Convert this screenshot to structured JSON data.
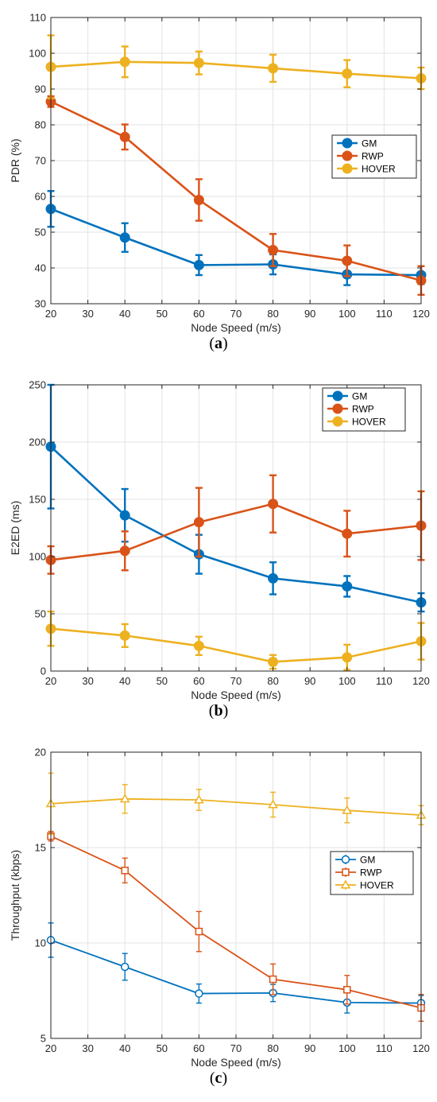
{
  "chart_data": [
    {
      "type": "line",
      "caption_open": "(",
      "caption_letter": "a",
      "caption_close": ")",
      "xlabel": "Node Speed (m/s)",
      "ylabel": "PDR (%)",
      "xlim": [
        20,
        120
      ],
      "ylim": [
        30,
        110
      ],
      "xticks": [
        20,
        30,
        40,
        50,
        60,
        70,
        80,
        90,
        100,
        110,
        120
      ],
      "yticks": [
        30,
        40,
        50,
        60,
        70,
        80,
        90,
        100,
        110
      ],
      "grid": true,
      "legend": "center-right",
      "marker": "filled",
      "x": [
        20,
        40,
        60,
        80,
        100,
        120
      ],
      "series": [
        {
          "name": "GM",
          "color": "#0072BD",
          "values": [
            56.5,
            48.5,
            40.8,
            41,
            38.2,
            38
          ],
          "err": [
            5,
            4,
            2.8,
            2.8,
            3,
            2.5
          ]
        },
        {
          "name": "RWP",
          "color": "#D95319",
          "values": [
            86.5,
            76.6,
            59,
            45,
            42,
            36.5
          ],
          "err": [
            1.5,
            3.5,
            5.8,
            4.5,
            4.3,
            4
          ]
        },
        {
          "name": "HOVER",
          "color": "#EDB120",
          "values": [
            96.2,
            97.6,
            97.3,
            95.8,
            94.3,
            93
          ],
          "err": [
            8.8,
            4.3,
            3.2,
            3.8,
            3.8,
            3
          ]
        }
      ]
    },
    {
      "type": "line",
      "caption_open": "(",
      "caption_letter": "b",
      "caption_close": ")",
      "xlabel": "Node Speed (m/s)",
      "ylabel": "E2ED (ms)",
      "xlim": [
        20,
        120
      ],
      "ylim": [
        0,
        250
      ],
      "xticks": [
        20,
        30,
        40,
        50,
        60,
        70,
        80,
        90,
        100,
        110,
        120
      ],
      "yticks": [
        0,
        50,
        100,
        150,
        200,
        250
      ],
      "grid": true,
      "legend": "top-right",
      "marker": "filled",
      "x": [
        20,
        40,
        60,
        80,
        100,
        120
      ],
      "series": [
        {
          "name": "GM",
          "color": "#0072BD",
          "values": [
            196,
            136,
            102,
            81,
            74,
            60
          ],
          "err": [
            54,
            23,
            17,
            14,
            9,
            8
          ]
        },
        {
          "name": "RWP",
          "color": "#D95319",
          "values": [
            97,
            105,
            130,
            146,
            120,
            127
          ],
          "err": [
            12,
            17,
            30,
            25,
            20,
            30
          ]
        },
        {
          "name": "HOVER",
          "color": "#EDB120",
          "values": [
            37,
            31,
            22,
            8,
            12,
            26
          ],
          "err": [
            15,
            10,
            8,
            6,
            11,
            16
          ]
        }
      ]
    },
    {
      "type": "line",
      "caption_open": "(",
      "caption_letter": "c",
      "caption_close": ")",
      "xlabel": "Node Speed (m/s)",
      "ylabel": "Throughput (kbps)",
      "xlim": [
        20,
        120
      ],
      "ylim": [
        5,
        20
      ],
      "xticks": [
        20,
        30,
        40,
        50,
        60,
        70,
        80,
        90,
        100,
        110,
        120
      ],
      "yticks": [
        5,
        10,
        15,
        20
      ],
      "grid": true,
      "legend": "center-right",
      "marker": "hollow",
      "x": [
        20,
        40,
        60,
        80,
        100,
        120
      ],
      "series": [
        {
          "name": "GM",
          "color": "#0072BD",
          "marker_shape": "circle",
          "values": [
            10.15,
            8.75,
            7.35,
            7.38,
            6.88,
            6.85
          ],
          "err": [
            0.9,
            0.7,
            0.5,
            0.45,
            0.55,
            0.4
          ]
        },
        {
          "name": "RWP",
          "color": "#D95319",
          "marker_shape": "square",
          "values": [
            15.6,
            13.8,
            10.6,
            8.1,
            7.55,
            6.6
          ],
          "err": [
            0.25,
            0.65,
            1.05,
            0.8,
            0.75,
            0.7
          ]
        },
        {
          "name": "HOVER",
          "color": "#EDB120",
          "marker_shape": "triangle",
          "values": [
            17.3,
            17.55,
            17.5,
            17.25,
            16.95,
            16.7
          ],
          "err": [
            1.6,
            0.75,
            0.55,
            0.65,
            0.65,
            0.5
          ]
        }
      ]
    }
  ]
}
